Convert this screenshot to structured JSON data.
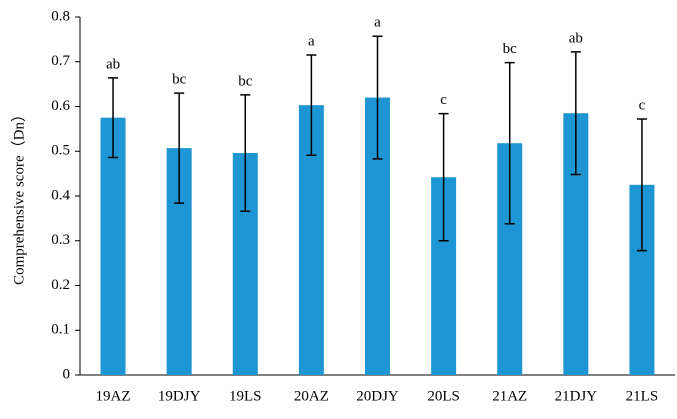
{
  "chart_data": {
    "type": "bar",
    "ylabel": "Comprehensive score（Dn）",
    "categories": [
      "19AZ",
      "19DJY",
      "19LS",
      "20AZ",
      "20DJY",
      "20LS",
      "21AZ",
      "21DJY",
      "21LS"
    ],
    "values": [
      0.575,
      0.507,
      0.496,
      0.603,
      0.62,
      0.442,
      0.518,
      0.585,
      0.425
    ],
    "errors": [
      0.089,
      0.123,
      0.13,
      0.112,
      0.137,
      0.142,
      0.18,
      0.137,
      0.147
    ],
    "annotations": [
      "ab",
      "bc",
      "bc",
      "a",
      "a",
      "c",
      "bc",
      "ab",
      "c"
    ],
    "color": "#1e96d4",
    "ylim": [
      0,
      0.8
    ],
    "yticks": [
      0,
      0.1,
      0.2,
      0.3,
      0.4,
      0.5,
      0.6,
      0.7,
      0.8
    ],
    "grid": false
  }
}
